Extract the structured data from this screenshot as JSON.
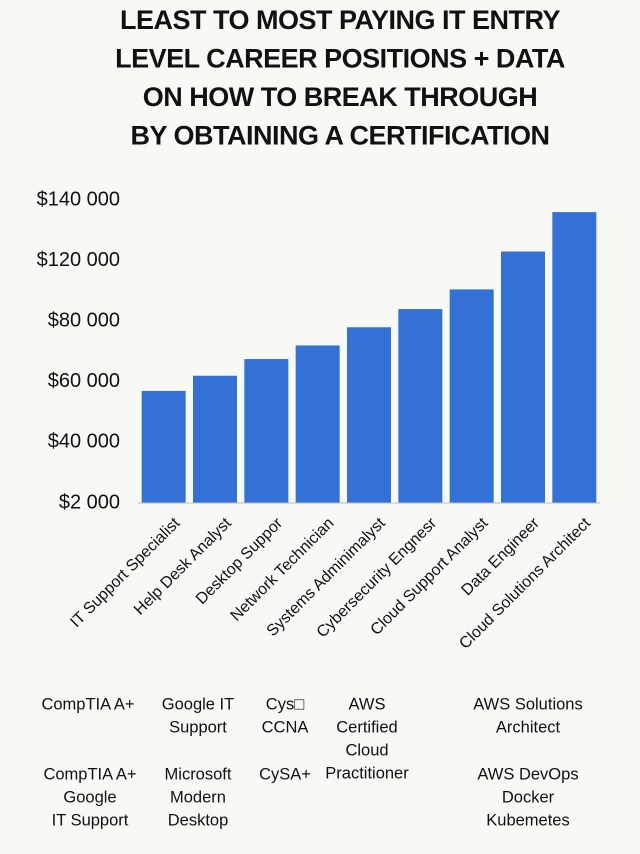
{
  "chart_data": {
    "type": "bar",
    "title": [
      "LEAST TO MOST PAYING IT ENTRY",
      "LEVEL CAREER POSITIONS + DATA",
      "ON HOW TO BREAK THROUGH",
      "BY OBTAINING A CERTIFICATION"
    ],
    "categories": [
      "IT Support Specialist",
      "Help Desk Analyst",
      "Desktop Suppor",
      "Network Technician",
      "Systems Adminimalyst",
      "Cybersecurity Engnesr",
      "Cloud Support Analyst",
      "Data Engineer",
      "Cloud Solutions Architect"
    ],
    "values": [
      57000,
      62000,
      67500,
      72000,
      78000,
      88000,
      101000,
      123000,
      136000
    ],
    "color": "#3371d6",
    "ylim": [
      2000,
      140000
    ],
    "yticks": [
      {
        "value": 2000,
        "label": "$2 000"
      },
      {
        "value": 40000,
        "label": "$40 000"
      },
      {
        "value": 60000,
        "label": "$60 000"
      },
      {
        "value": 80000,
        "label": "$80 000"
      },
      {
        "value": 120000,
        "label": "$120 000"
      },
      {
        "value": 140000,
        "label": "$140 000"
      }
    ],
    "grid": false
  },
  "certifications": [
    {
      "lines": [
        "CompTIA A+"
      ]
    },
    {
      "lines": [
        "Google IT",
        "Support"
      ]
    },
    {
      "lines": [
        "Cys□",
        "CCNA"
      ]
    },
    {
      "lines": [
        "AWS",
        "Certified",
        "Cloud",
        "Practitioner"
      ]
    },
    {
      "lines": [
        "AWS Solutions",
        "Architect"
      ]
    },
    {
      "lines": [
        "CompTIA A+",
        "Google",
        "IT Support"
      ]
    },
    {
      "lines": [
        "Microsoft",
        "Modern",
        "Desktop"
      ]
    },
    {
      "lines": [
        "CySA+"
      ]
    },
    {
      "lines": [
        "AWS DevOps",
        "Docker",
        "Kubemetes"
      ]
    }
  ]
}
